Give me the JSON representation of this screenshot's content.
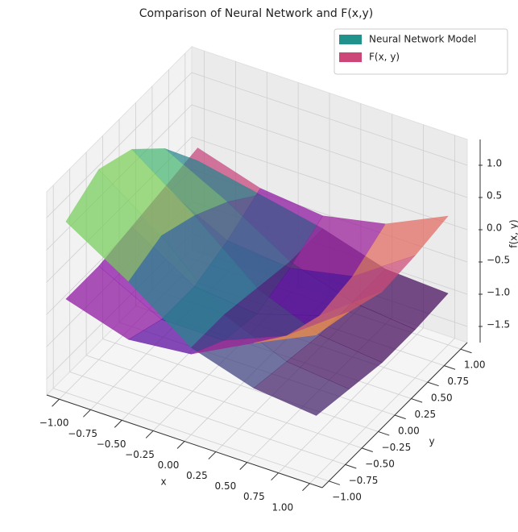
{
  "chart_data": {
    "type": "surface3d",
    "title": "Comparison of Neural Network and F(x,y)",
    "xlabel": "x",
    "ylabel": "y",
    "zlabel": "f(x, y)",
    "x": [
      -1,
      -0.5,
      0,
      0.5,
      1
    ],
    "y": [
      -1,
      -0.5,
      0,
      0.5,
      1
    ],
    "series": [
      {
        "name": "Neural Network Model",
        "color": "#21918c",
        "colormap": "viridis",
        "values": [
          [
            0.9,
            0.3,
            -0.4,
            -0.7,
            -0.8
          ],
          [
            1.2,
            0.5,
            -0.4,
            -0.8,
            -0.9
          ],
          [
            1.0,
            0.3,
            -0.5,
            -0.9,
            -1.0
          ],
          [
            0.5,
            0.0,
            -0.6,
            -0.9,
            -1.0
          ],
          [
            -0.2,
            -0.4,
            -0.6,
            -0.9,
            -0.95
          ]
        ]
      },
      {
        "name": "F(x, y)",
        "color": "#cc4778",
        "colormap": "plasma",
        "values": [
          [
            -0.3,
            -0.6,
            -0.5,
            0.0,
            0.45
          ],
          [
            -0.3,
            -0.8,
            -0.8,
            -0.4,
            0.3
          ],
          [
            -0.2,
            -0.8,
            -0.9,
            -0.6,
            0.1
          ],
          [
            -0.1,
            -0.6,
            -0.7,
            -0.5,
            0.15
          ],
          [
            0.0,
            -0.3,
            -0.4,
            -0.2,
            0.25
          ]
        ]
      }
    ],
    "xlim": [
      -1.1,
      1.1
    ],
    "ylim": [
      -1.1,
      1.1
    ],
    "zlim": [
      -1.75,
      1.4
    ],
    "xticks": [
      {
        "value": -1,
        "label": "−1.00"
      },
      {
        "value": -0.75,
        "label": "−0.75"
      },
      {
        "value": -0.5,
        "label": "−0.50"
      },
      {
        "value": -0.25,
        "label": "−0.25"
      },
      {
        "value": 0,
        "label": "0.00"
      },
      {
        "value": 0.25,
        "label": "0.25"
      },
      {
        "value": 0.5,
        "label": "0.50"
      },
      {
        "value": 0.75,
        "label": "0.75"
      },
      {
        "value": 1,
        "label": "1.00"
      }
    ],
    "yticks": [
      {
        "value": -1,
        "label": "−1.00"
      },
      {
        "value": -0.75,
        "label": "−0.75"
      },
      {
        "value": -0.5,
        "label": "−0.50"
      },
      {
        "value": -0.25,
        "label": "−0.25"
      },
      {
        "value": 0,
        "label": "0.00"
      },
      {
        "value": 0.25,
        "label": "0.25"
      },
      {
        "value": 0.5,
        "label": "0.50"
      },
      {
        "value": 0.75,
        "label": "0.75"
      },
      {
        "value": 1,
        "label": "1.00"
      }
    ],
    "zticks": [
      {
        "value": -1.5,
        "label": "−1.5"
      },
      {
        "value": -1,
        "label": "−1.0"
      },
      {
        "value": -0.5,
        "label": "−0.5"
      },
      {
        "value": 0,
        "label": "0.0"
      },
      {
        "value": 0.5,
        "label": "0.5"
      },
      {
        "value": 1,
        "label": "1.0"
      }
    ],
    "grid": true,
    "legend": "upper right"
  }
}
